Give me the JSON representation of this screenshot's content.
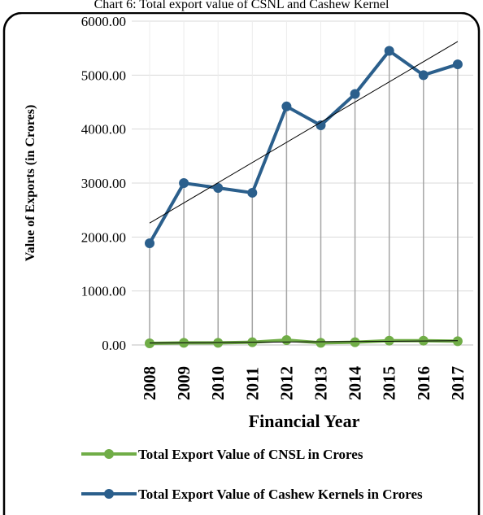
{
  "chart_data": {
    "type": "line",
    "title": "Chart 6: Total export value of CSNL and Cashew Kernel",
    "x_label": "Financial Year",
    "y_label": "Value of Exports (in Crores)",
    "categories": [
      "2008",
      "2009",
      "2010",
      "2011",
      "2012",
      "2013",
      "2014",
      "2015",
      "2016",
      "2017"
    ],
    "series": [
      {
        "name": "Total Export Value of CNSL in Crores",
        "color": "#70ad47",
        "values": [
          30,
          40,
          40,
          50,
          90,
          40,
          50,
          80,
          80,
          70
        ]
      },
      {
        "name": "Total Export Value of Cashew Kernels in Crores",
        "color": "#2b5f8c",
        "values": [
          1885,
          3000,
          2910,
          2820,
          4420,
          4070,
          4650,
          5450,
          5000,
          5200
        ]
      }
    ],
    "ylim": [
      0,
      6000
    ],
    "yticks": [
      {
        "value": 0,
        "label": "0.00"
      },
      {
        "value": 1000,
        "label": "1000.00"
      },
      {
        "value": 2000,
        "label": "2000.00"
      },
      {
        "value": 3000,
        "label": "3000.00"
      },
      {
        "value": 4000,
        "label": "4000.00"
      },
      {
        "value": 5000,
        "label": "5000.00"
      },
      {
        "value": 6000,
        "label": "6000.00"
      }
    ],
    "grid": true,
    "drop_lines": true,
    "trendline": true,
    "legend": "bottom"
  }
}
